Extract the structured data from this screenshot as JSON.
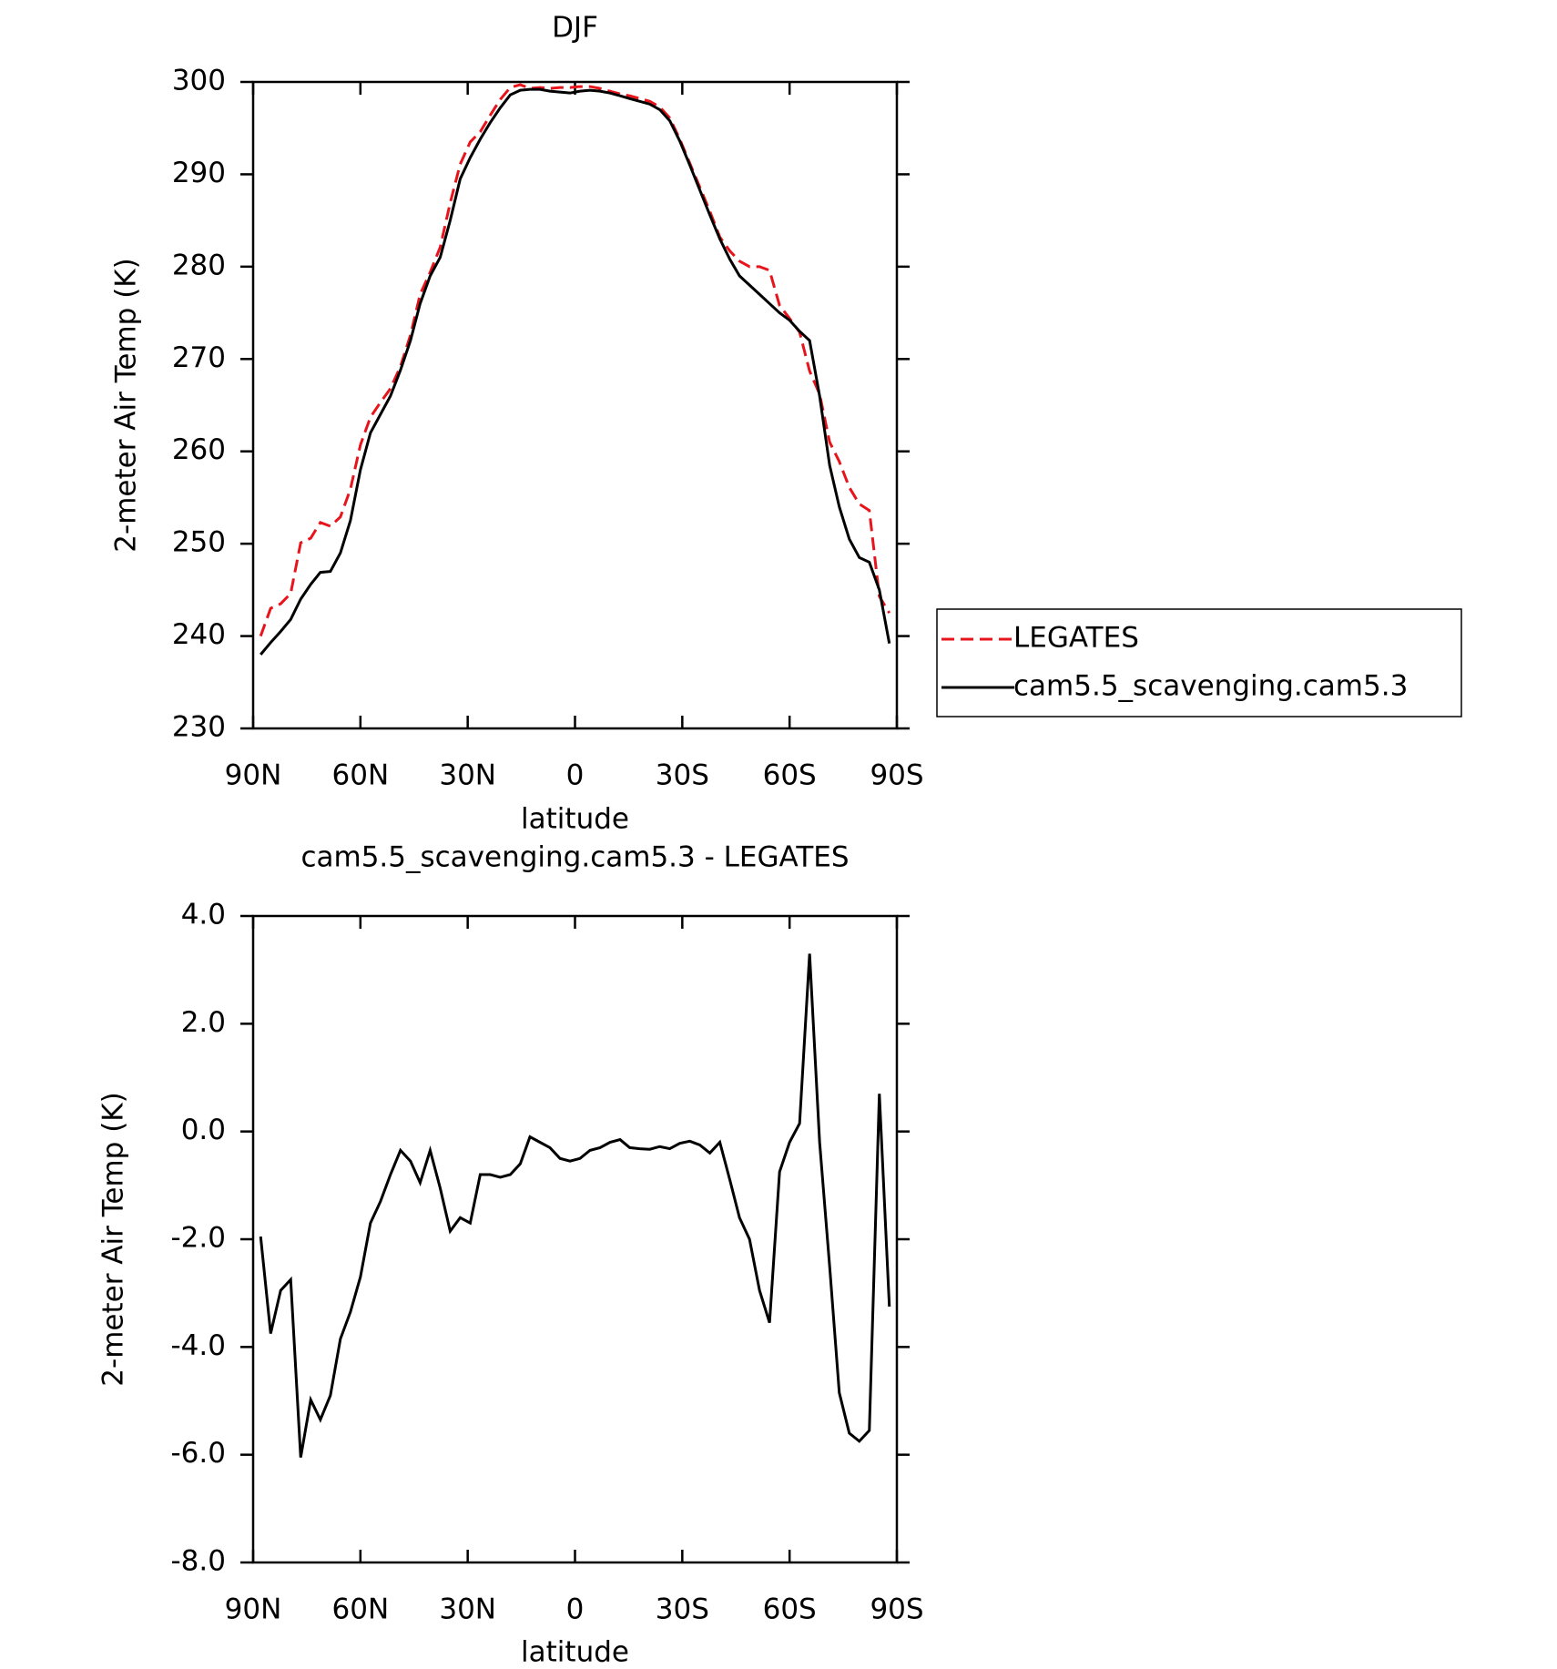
{
  "chart_data": [
    {
      "type": "line",
      "title": "DJF",
      "xlabel": "latitude",
      "ylabel": "2-meter Air Temp (K)",
      "x": [
        87.9,
        85.1,
        82.3,
        79.5,
        76.7,
        73.9,
        71.2,
        68.4,
        65.6,
        62.8,
        60.0,
        57.2,
        54.4,
        51.6,
        48.8,
        46.0,
        43.3,
        40.5,
        37.7,
        34.9,
        32.1,
        29.3,
        26.5,
        23.7,
        20.9,
        18.1,
        15.3,
        12.6,
        9.8,
        7.0,
        4.2,
        1.4,
        -1.4,
        -4.2,
        -7.0,
        -9.8,
        -12.6,
        -15.3,
        -18.1,
        -20.9,
        -23.7,
        -26.5,
        -29.3,
        -32.1,
        -34.9,
        -37.7,
        -40.5,
        -43.3,
        -46.0,
        -48.8,
        -51.6,
        -54.4,
        -57.2,
        -60.0,
        -62.8,
        -65.6,
        -68.4,
        -71.2,
        -73.9,
        -76.7,
        -79.5,
        -82.3,
        -85.1,
        -87.9
      ],
      "series": [
        {
          "name": "LEGATES",
          "color": "#e8141c",
          "dashed": true,
          "values": [
            240.0,
            243.0,
            243.5,
            244.6,
            250.1,
            250.6,
            252.3,
            251.9,
            252.9,
            255.9,
            260.7,
            263.7,
            265.3,
            266.8,
            269.2,
            272.6,
            277.0,
            279.4,
            282.1,
            286.9,
            291.1,
            293.5,
            294.6,
            296.4,
            298.1,
            299.4,
            299.7,
            299.3,
            299.4,
            299.3,
            299.4,
            299.4,
            299.5,
            299.5,
            299.3,
            299.0,
            298.7,
            298.5,
            298.2,
            297.9,
            297.3,
            296.1,
            293.8,
            291.2,
            288.6,
            286.0,
            283.2,
            281.7,
            280.6,
            280.0,
            280.0,
            279.6,
            275.8,
            274.4,
            272.9,
            268.7,
            266.2,
            261.0,
            258.9,
            256.1,
            254.3,
            253.6,
            244.3,
            242.5
          ]
        },
        {
          "name": "cam5.5_scavenging.cam5.3",
          "color": "#000000",
          "dashed": false,
          "values": [
            238.0,
            239.3,
            240.5,
            241.8,
            244.0,
            245.6,
            246.9,
            247.0,
            249.0,
            252.5,
            258.0,
            262.0,
            264.0,
            266.0,
            268.8,
            272.0,
            276.0,
            279.0,
            281.0,
            285.0,
            289.5,
            291.8,
            293.8,
            295.6,
            297.2,
            298.6,
            299.1,
            299.2,
            299.2,
            299.0,
            298.9,
            298.8,
            299.0,
            299.1,
            299.0,
            298.8,
            298.5,
            298.2,
            297.9,
            297.6,
            297.0,
            295.8,
            293.6,
            291.0,
            288.3,
            285.6,
            283.0,
            280.8,
            279.0,
            278.0,
            277.0,
            276.0,
            275.0,
            274.2,
            273.0,
            272.0,
            266.0,
            258.5,
            254.0,
            250.5,
            248.5,
            248.0,
            245.0,
            239.2
          ]
        }
      ],
      "xlim": [
        90,
        -90
      ],
      "ylim": [
        230,
        300
      ],
      "xticks": [
        {
          "value": 90,
          "label": "90N"
        },
        {
          "value": 60,
          "label": "60N"
        },
        {
          "value": 30,
          "label": "30N"
        },
        0,
        {
          "value": -30,
          "label": "30S"
        },
        {
          "value": -60,
          "label": "60S"
        },
        {
          "value": -90,
          "label": "90S"
        }
      ],
      "yticks": [
        230,
        240,
        250,
        260,
        270,
        280,
        290,
        300
      ],
      "legend": "outside right"
    },
    {
      "type": "line",
      "title": "cam5.5_scavenging.cam5.3 - LEGATES",
      "xlabel": "latitude",
      "ylabel": "2-meter Air Temp (K)",
      "x": [
        87.9,
        85.1,
        82.3,
        79.5,
        76.7,
        73.9,
        71.2,
        68.4,
        65.6,
        62.8,
        60.0,
        57.2,
        54.4,
        51.6,
        48.8,
        46.0,
        43.3,
        40.5,
        37.7,
        34.9,
        32.1,
        29.3,
        26.5,
        23.7,
        20.9,
        18.1,
        15.3,
        12.6,
        9.8,
        7.0,
        4.2,
        1.4,
        -1.4,
        -4.2,
        -7.0,
        -9.8,
        -12.6,
        -15.3,
        -18.1,
        -20.9,
        -23.7,
        -26.5,
        -29.3,
        -32.1,
        -34.9,
        -37.7,
        -40.5,
        -43.3,
        -46.0,
        -48.8,
        -51.6,
        -54.4,
        -57.2,
        -60.0,
        -62.8,
        -65.6,
        -68.4,
        -71.2,
        -73.9,
        -76.7,
        -79.5,
        -82.3,
        -85.1,
        -87.9
      ],
      "series": [
        {
          "color": "#000000",
          "dashed": false,
          "values": [
            -1.95,
            -3.75,
            -2.95,
            -2.75,
            -6.05,
            -4.98,
            -5.35,
            -4.9,
            -3.85,
            -3.35,
            -2.7,
            -1.7,
            -1.3,
            -0.8,
            -0.35,
            -0.55,
            -0.95,
            -0.35,
            -1.05,
            -1.85,
            -1.6,
            -1.7,
            -0.8,
            -0.8,
            -0.85,
            -0.8,
            -0.6,
            -0.1,
            -0.2,
            -0.3,
            -0.5,
            -0.55,
            -0.5,
            -0.35,
            -0.3,
            -0.2,
            -0.15,
            -0.3,
            -0.32,
            -0.33,
            -0.28,
            -0.32,
            -0.22,
            -0.18,
            -0.25,
            -0.4,
            -0.2,
            -0.9,
            -1.6,
            -2.0,
            -2.95,
            -3.55,
            -0.75,
            -0.2,
            0.15,
            3.3,
            -0.2,
            -2.5,
            -4.85,
            -5.6,
            -5.75,
            -5.55,
            0.7,
            -3.25
          ]
        }
      ],
      "xlim": [
        90,
        -90
      ],
      "ylim": [
        -8,
        4
      ],
      "xticks": [
        {
          "value": 90,
          "label": "90N"
        },
        {
          "value": 60,
          "label": "60N"
        },
        {
          "value": 30,
          "label": "30N"
        },
        0,
        {
          "value": -30,
          "label": "30S"
        },
        {
          "value": -60,
          "label": "60S"
        },
        {
          "value": -90,
          "label": "90S"
        }
      ],
      "yticks": [
        {
          "value": -8,
          "label": "-8.0"
        },
        {
          "value": -6,
          "label": "-6.0"
        },
        {
          "value": -4,
          "label": "-4.0"
        },
        {
          "value": -2,
          "label": "-2.0"
        },
        {
          "value": 0,
          "label": "0.0"
        },
        {
          "value": 2,
          "label": "2.0"
        },
        {
          "value": 4,
          "label": "4.0"
        }
      ]
    }
  ]
}
